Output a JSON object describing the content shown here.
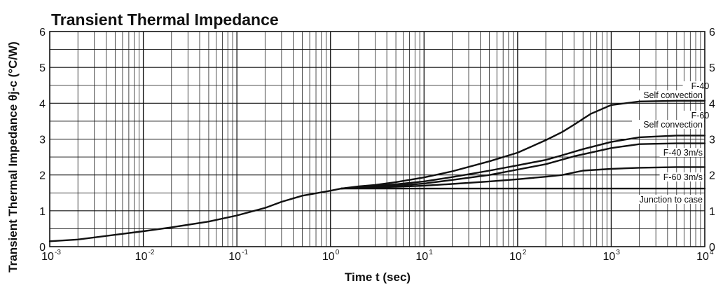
{
  "chart_data": {
    "type": "line",
    "title": "Transient Thermal Impedance",
    "xlabel": "Time t (sec)",
    "ylabel": "Transient Thermal Impedance θj-c (°C/W)",
    "x_scale": "log",
    "xlim": [
      0.001,
      10000
    ],
    "ylim": [
      0,
      6
    ],
    "grid": true,
    "x_tick_labels": [
      {
        "base": "10",
        "exp": "-3"
      },
      {
        "base": "10",
        "exp": "-2"
      },
      {
        "base": "10",
        "exp": "-1"
      },
      {
        "base": "10",
        "exp": "0"
      },
      {
        "base": "10",
        "exp": "1"
      },
      {
        "base": "10",
        "exp": "2"
      },
      {
        "base": "10",
        "exp": "3"
      },
      {
        "base": "10",
        "exp": "4"
      }
    ],
    "y_ticks": [
      0,
      1,
      2,
      3,
      4,
      5,
      6
    ],
    "y_tick_labels": [
      "0",
      "1",
      "2",
      "3",
      "4",
      "5",
      "6"
    ],
    "series": [
      {
        "name": "F-40 Self convection",
        "label_lines": [
          "F-40",
          "Self convection"
        ],
        "points": [
          [
            0.001,
            0.15
          ],
          [
            0.002,
            0.2
          ],
          [
            0.005,
            0.33
          ],
          [
            0.01,
            0.43
          ],
          [
            0.02,
            0.54
          ],
          [
            0.05,
            0.7
          ],
          [
            0.1,
            0.87
          ],
          [
            0.2,
            1.08
          ],
          [
            0.3,
            1.25
          ],
          [
            0.5,
            1.42
          ],
          [
            1,
            1.56
          ],
          [
            1.3,
            1.62
          ],
          [
            2,
            1.68
          ],
          [
            3,
            1.72
          ],
          [
            5,
            1.8
          ],
          [
            10,
            1.93
          ],
          [
            20,
            2.1
          ],
          [
            50,
            2.38
          ],
          [
            100,
            2.62
          ],
          [
            200,
            2.97
          ],
          [
            300,
            3.2
          ],
          [
            400,
            3.4
          ],
          [
            600,
            3.7
          ],
          [
            1000,
            3.95
          ],
          [
            2000,
            4.05
          ],
          [
            5000,
            4.07
          ],
          [
            10000,
            4.07
          ]
        ]
      },
      {
        "name": "F-60 Self convection",
        "label_lines": [
          "F-60",
          "Self convection"
        ],
        "points": [
          [
            1.3,
            1.62
          ],
          [
            2,
            1.66
          ],
          [
            3,
            1.69
          ],
          [
            5,
            1.74
          ],
          [
            10,
            1.82
          ],
          [
            20,
            1.94
          ],
          [
            50,
            2.12
          ],
          [
            100,
            2.27
          ],
          [
            200,
            2.42
          ],
          [
            300,
            2.55
          ],
          [
            500,
            2.72
          ],
          [
            1000,
            2.92
          ],
          [
            2000,
            3.05
          ],
          [
            5000,
            3.1
          ],
          [
            10000,
            3.1
          ]
        ]
      },
      {
        "name": "F-40 3m/s",
        "label_lines": [
          "F-40 3m/s"
        ],
        "points": [
          [
            1.3,
            1.62
          ],
          [
            2,
            1.65
          ],
          [
            5,
            1.7
          ],
          [
            10,
            1.76
          ],
          [
            20,
            1.86
          ],
          [
            50,
            2.0
          ],
          [
            100,
            2.15
          ],
          [
            200,
            2.3
          ],
          [
            400,
            2.52
          ],
          [
            1000,
            2.75
          ],
          [
            2000,
            2.86
          ],
          [
            5000,
            2.88
          ],
          [
            10000,
            2.88
          ]
        ]
      },
      {
        "name": "F-60 3m/s",
        "label_lines": [
          "F-60 3m/s"
        ],
        "points": [
          [
            1.3,
            1.62
          ],
          [
            2,
            1.64
          ],
          [
            5,
            1.67
          ],
          [
            10,
            1.7
          ],
          [
            20,
            1.75
          ],
          [
            50,
            1.82
          ],
          [
            100,
            1.88
          ],
          [
            200,
            1.95
          ],
          [
            300,
            2.0
          ],
          [
            500,
            2.12
          ],
          [
            1000,
            2.17
          ],
          [
            2000,
            2.2
          ],
          [
            5000,
            2.22
          ],
          [
            10000,
            2.22
          ]
        ]
      },
      {
        "name": "Junction to case",
        "label_lines": [
          "Junction to case"
        ],
        "points": [
          [
            1.3,
            1.62
          ],
          [
            2,
            1.62
          ],
          [
            10000,
            1.62
          ]
        ]
      }
    ]
  }
}
